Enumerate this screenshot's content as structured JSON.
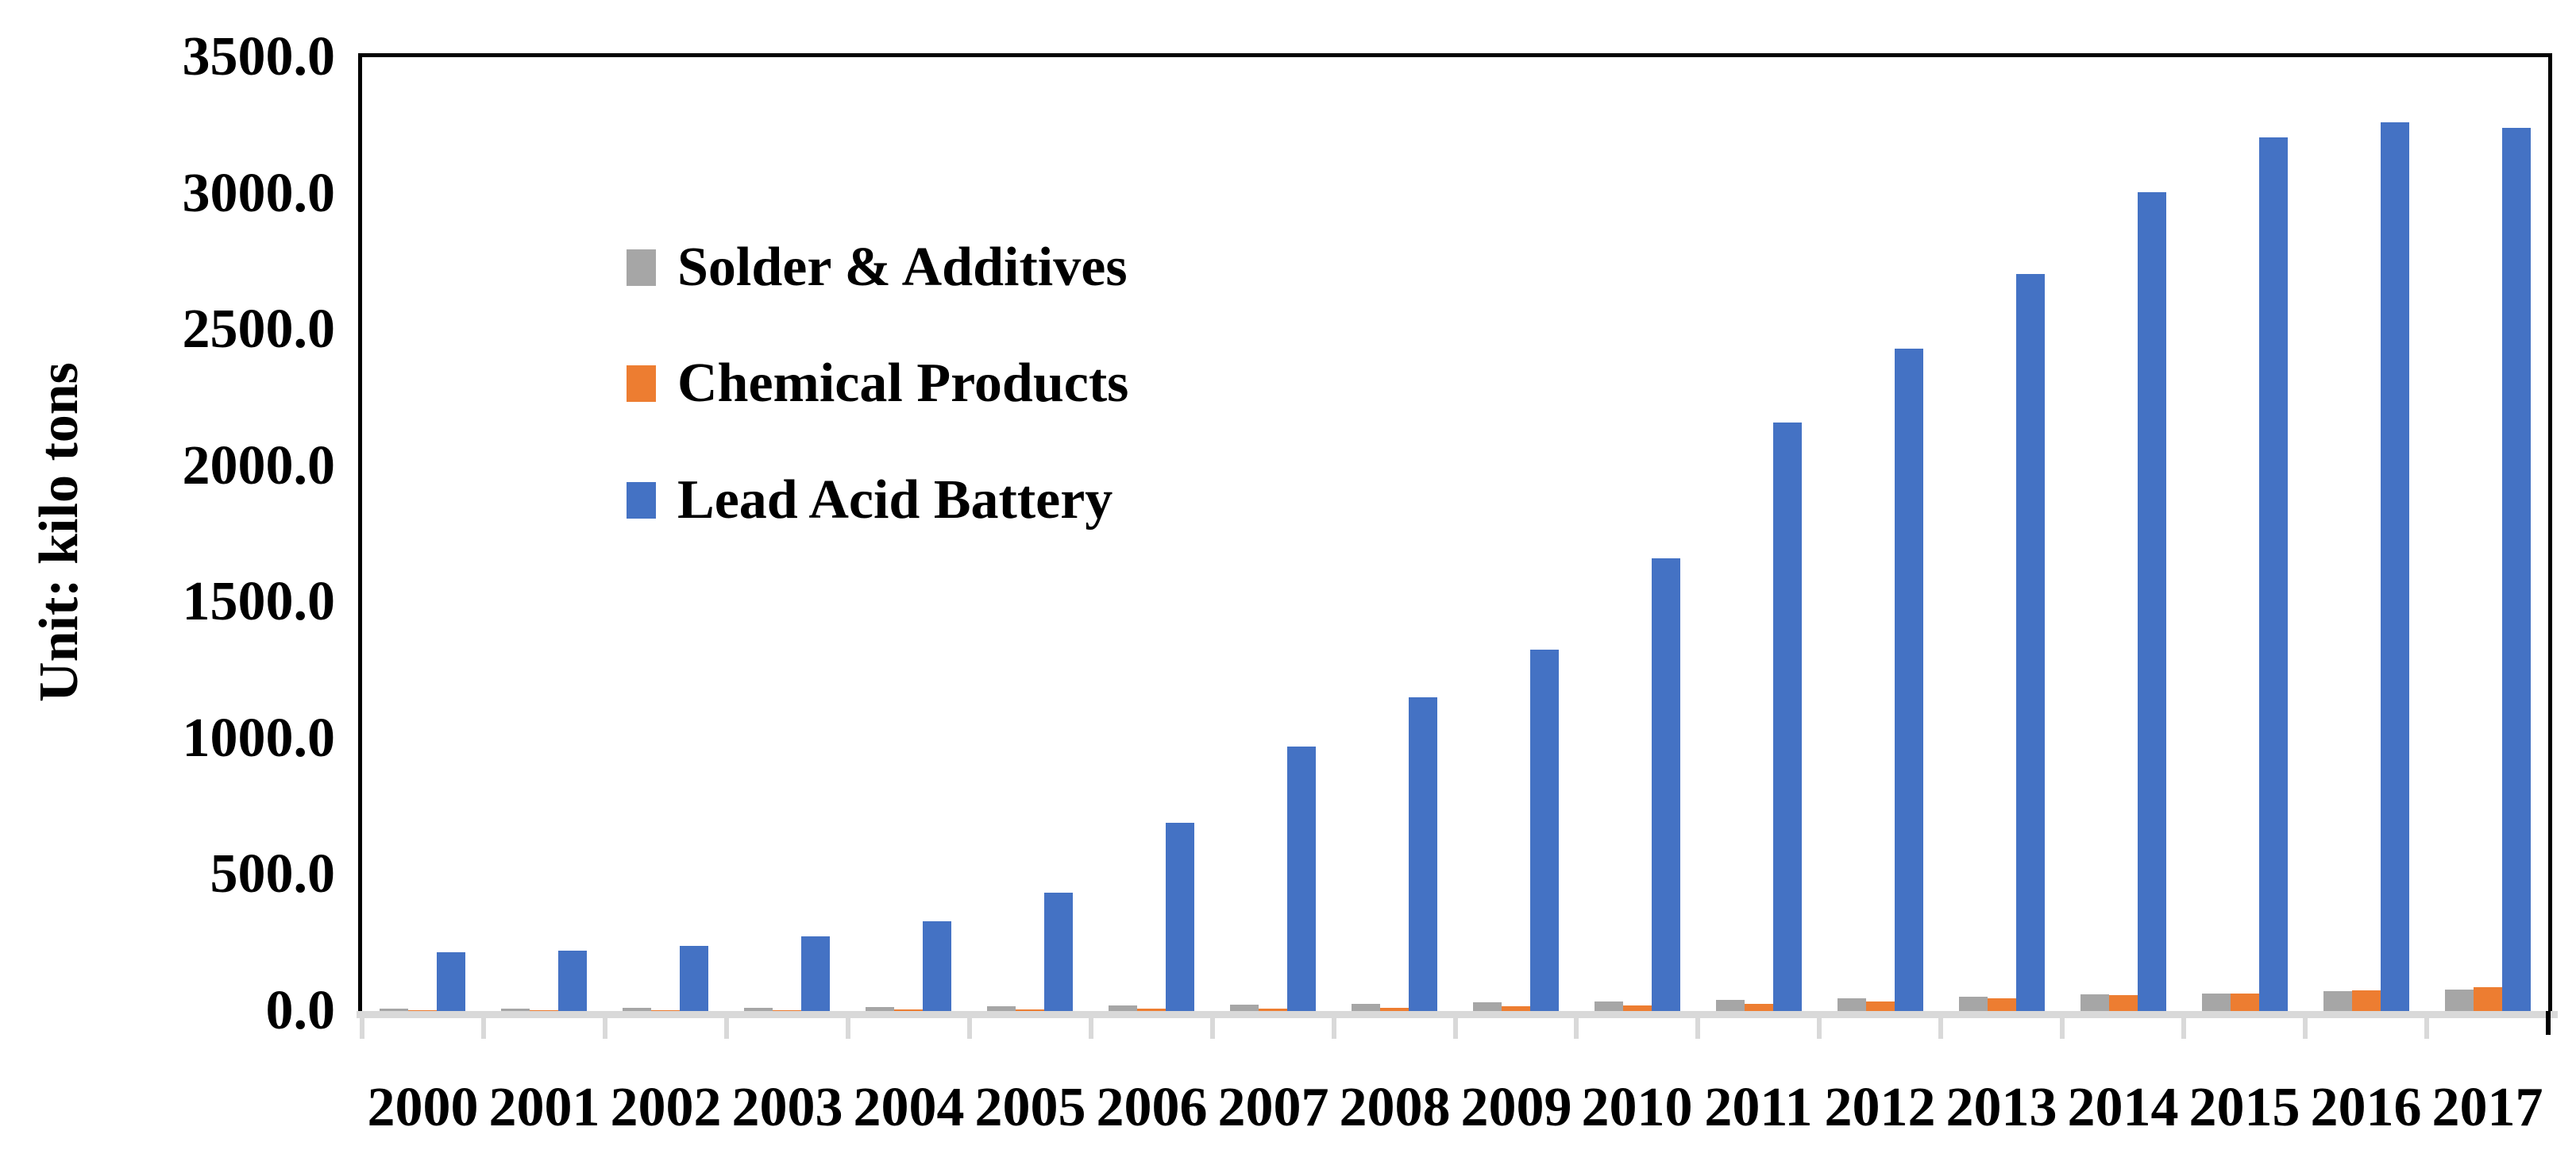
{
  "chart_data": {
    "type": "bar",
    "title": "",
    "ylabel": "Unit: kilo tons",
    "xlabel": "",
    "ylim": [
      0,
      3500
    ],
    "ytick_step": 500,
    "ytick_decimals": 1,
    "grid": false,
    "legend_position": "inside-top-left",
    "axis_strip_color": "#D9D9D9",
    "plot_border_color": "#000000",
    "categories": [
      "2000",
      "2001",
      "2002",
      "2003",
      "2004",
      "2005",
      "2006",
      "2007",
      "2008",
      "2009",
      "2010",
      "2011",
      "2012",
      "2013",
      "2014",
      "2015",
      "2016",
      "2017"
    ],
    "series": [
      {
        "name": "Solder & Additives",
        "color": "#A6A6A6",
        "values": [
          8,
          9,
          11,
          13,
          15,
          17,
          20,
          23,
          27,
          32,
          36,
          40,
          47,
          53,
          60,
          65,
          74,
          78
        ]
      },
      {
        "name": "Chemical Products",
        "color": "#ED7D31",
        "values": [
          2,
          2,
          3,
          4,
          5,
          6,
          8,
          10,
          13,
          17,
          20,
          25,
          35,
          48,
          57,
          64,
          77,
          86
        ]
      },
      {
        "name": "Lead Acid Battery",
        "color": "#4472C4",
        "values": [
          215,
          222,
          240,
          275,
          330,
          435,
          690,
          970,
          1150,
          1325,
          1660,
          2160,
          2430,
          2705,
          3005,
          3205,
          3260,
          3240
        ]
      }
    ]
  }
}
